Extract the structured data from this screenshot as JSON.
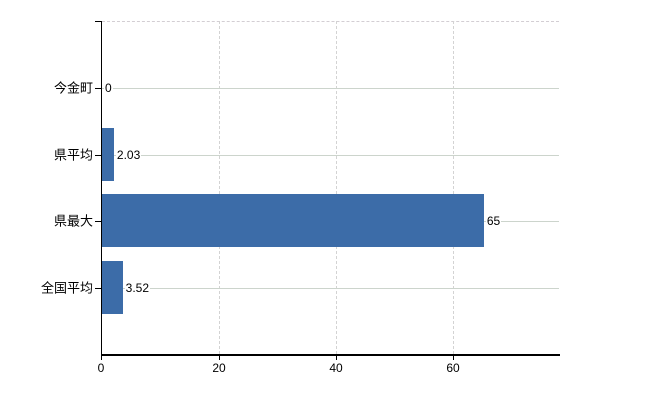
{
  "chart_data": {
    "type": "bar",
    "orientation": "horizontal",
    "title": "",
    "xlabel": "",
    "ylabel": "",
    "categories": [
      "今金町",
      "県平均",
      "県最大",
      "全国平均"
    ],
    "values": [
      0,
      2.03,
      65,
      3.52
    ],
    "value_labels": [
      "0",
      "2.03",
      "65",
      "3.52"
    ],
    "x_ticks": [
      "0",
      "20",
      "40",
      "60"
    ],
    "x_tick_values": [
      0,
      20,
      40,
      60
    ],
    "xlim": [
      0,
      78
    ],
    "legend": "none",
    "grid": {
      "horizontal": "solid",
      "vertical": "dashed",
      "top_border": "dashed"
    },
    "colors": {
      "bar": "#3c6ca8",
      "horizontal_gridline": "#ccd4cc",
      "vertical_gridline": "#d3d3d3",
      "axis": "#000000",
      "text": "#000000",
      "background": "#ffffff"
    }
  }
}
